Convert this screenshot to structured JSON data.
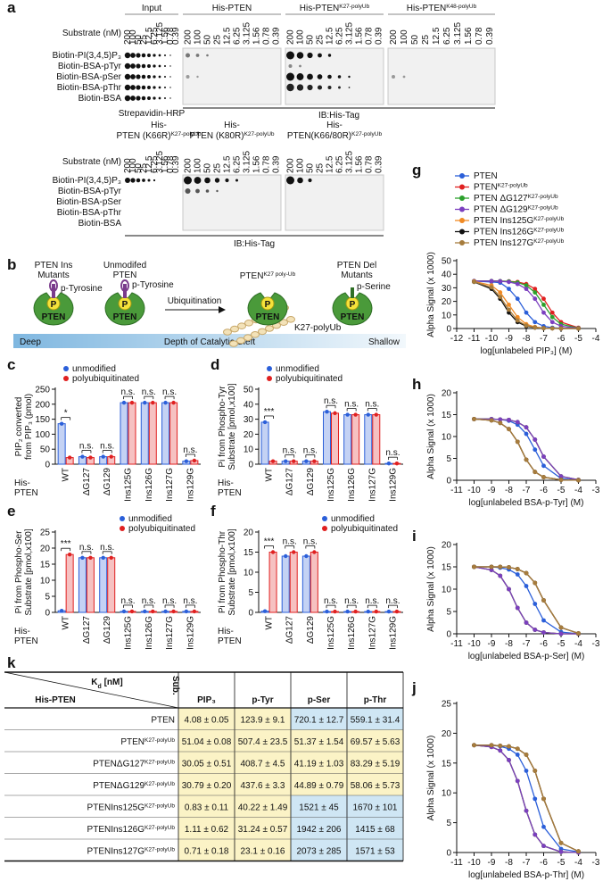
{
  "panel_a": {
    "label": "a",
    "substrate_label": "Substrate (nM)",
    "concentrations": [
      200,
      100,
      50,
      25,
      12.5,
      6.25,
      3.125,
      1.56,
      0.78,
      0.39
    ],
    "rows": [
      "Biotin-PI(3,4,5)P₃",
      "Biotin-BSA-pTyr",
      "Biotin-BSA-pSer",
      "Biotin-BSA-pThr",
      "Biotin-BSA"
    ],
    "top_blots": [
      {
        "title": "Input"
      },
      {
        "title": "His-PTEN"
      },
      {
        "title": "His-PTEN",
        "sup": "K27-polyUb"
      },
      {
        "title": "His-PTEN",
        "sup": "K48-polyUb"
      }
    ],
    "input_caption": "Strepavidin-HRP",
    "top_caption": "IB:His-Tag",
    "bottom_blots": [
      {
        "lines": [
          "His-",
          "PTEN (K66R)"
        ],
        "sup": "K27-polyUb"
      },
      {
        "lines": [
          "His-",
          "PTEN (K80R)"
        ],
        "sup": "K27-polyUb"
      },
      {
        "lines": [
          "His-",
          "PTEN(K66/80R)"
        ],
        "sup": "K27-polyUb"
      }
    ],
    "bottom_caption": "IB:His-Tag"
  },
  "panel_b": {
    "label": "b",
    "ins": [
      "PTEN Ins",
      "Mutants"
    ],
    "unmod": [
      "Unmodifed",
      "PTEN"
    ],
    "ptyr": "p-Tyrosine",
    "ubiq": "Ubiquitination",
    "k27": {
      "main": "PTEN",
      "sup": "K27 poly-Ub"
    },
    "del": [
      "PTEN Del",
      "Mutants"
    ],
    "pser": "p-Serine",
    "enzyme": "PTEN",
    "p": "P",
    "chain": "K27-polyUb",
    "scale": [
      "Deep",
      "Depth of Catalytic Cleft",
      "Shallow"
    ]
  },
  "chart_data": [
    {
      "type": "bar",
      "label": "c",
      "ylabel": [
        "PIP₂ converted",
        "from PIP₃ (pmol)"
      ],
      "xlabel": [
        "His-",
        "PTEN"
      ],
      "legend": "top-left",
      "categories": [
        "WT",
        "ΔG127",
        "ΔG129",
        "Ins125G",
        "Ins126G",
        "Ins127G",
        "Ins129G"
      ],
      "series": [
        {
          "name": "unmodified",
          "color": "#2b5fd9",
          "values": [
            135,
            25,
            25,
            205,
            205,
            205,
            10
          ]
        },
        {
          "name": "polyubiquitinated",
          "color": "#e02020",
          "values": [
            22,
            22,
            25,
            205,
            205,
            205,
            12
          ]
        }
      ],
      "annotations": [
        "*",
        "n.s.",
        "n.s.",
        "n.s.",
        "n.s.",
        "n.s.",
        "n.s."
      ],
      "ylim": [
        0,
        250
      ],
      "yticks": [
        0,
        50,
        100,
        150,
        200,
        250
      ]
    },
    {
      "type": "bar",
      "label": "d",
      "ylabel": [
        "Pi from Phospho-Tyr",
        "Substrate [pmol,x100]"
      ],
      "xlabel": [
        "His-",
        "PTEN"
      ],
      "legend": "top-left",
      "categories": [
        "WT",
        "ΔG127",
        "ΔG129",
        "Ins125G",
        "Ins126G",
        "Ins127G",
        "Ins129G"
      ],
      "series": [
        {
          "name": "unmodified",
          "color": "#2b5fd9",
          "values": [
            28,
            2,
            2,
            35,
            33,
            33,
            0.5
          ]
        },
        {
          "name": "polyubiquitinated",
          "color": "#e02020",
          "values": [
            2,
            2,
            2,
            34,
            33,
            33,
            0.5
          ]
        }
      ],
      "annotations": [
        "***",
        "n.s.",
        "n.s.",
        "n.s.",
        "n.s.",
        "n.s.",
        "n.s."
      ],
      "ylim": [
        0,
        50
      ],
      "yticks": [
        0,
        10,
        20,
        30,
        40,
        50
      ]
    },
    {
      "type": "bar",
      "label": "e",
      "ylabel": [
        "Pi from Phospho-Ser",
        "Substrate [pmol,x100]"
      ],
      "xlabel": [
        "His-",
        "PTEN"
      ],
      "legend": "top-right",
      "categories": [
        "WT",
        "ΔG127",
        "ΔG129",
        "Ins125G",
        "Ins126G",
        "Ins127G",
        "Ins129G"
      ],
      "series": [
        {
          "name": "unmodified",
          "color": "#2b5fd9",
          "values": [
            0.5,
            17,
            17,
            0.3,
            0.3,
            0.3,
            0.3
          ]
        },
        {
          "name": "polyubiquitinated",
          "color": "#e02020",
          "values": [
            18,
            17,
            17,
            0.3,
            0.3,
            0.3,
            0.3
          ]
        }
      ],
      "annotations": [
        "***",
        "n.s.",
        "n.s.",
        "n.s.",
        "n.s.",
        "n.s.",
        "n.s."
      ],
      "ylim": [
        0,
        25
      ],
      "yticks": [
        0,
        5,
        10,
        15,
        20,
        25
      ]
    },
    {
      "type": "bar",
      "label": "f",
      "ylabel": [
        "Pi from Phospho-Thr",
        "Substrate [pmol,x100]"
      ],
      "xlabel": [
        "His-",
        "PTEN"
      ],
      "legend": "top-right",
      "categories": [
        "WT",
        "ΔG127",
        "ΔG129",
        "Ins125G",
        "Ins126G",
        "Ins127G",
        "Ins129G"
      ],
      "series": [
        {
          "name": "unmodified",
          "color": "#2b5fd9",
          "values": [
            0.3,
            14,
            14,
            0.2,
            0.2,
            0.2,
            0.2
          ]
        },
        {
          "name": "polyubiquitinated",
          "color": "#e02020",
          "values": [
            15,
            15,
            15,
            0.2,
            0.2,
            0.2,
            0.2
          ]
        }
      ],
      "annotations": [
        "***",
        "n.s.",
        "n.s.",
        "n.s.",
        "n.s.",
        "n.s.",
        "n.s."
      ],
      "ylim": [
        0,
        20
      ],
      "yticks": [
        0,
        5,
        10,
        15,
        20
      ]
    },
    {
      "type": "line",
      "label": "g",
      "xlabel": "log[unlabeled PIP₃] (M)",
      "ylabel": "Alpha Signal (x 1000)",
      "x": [
        -11,
        -10,
        -9.5,
        -9,
        -8.5,
        -8,
        -7.5,
        -7,
        -6.5,
        -6,
        -5
      ],
      "xlim": [
        -12,
        -4
      ],
      "xticks": [
        -12,
        -11,
        -10,
        -9,
        -8,
        -7,
        -6,
        -5,
        -4
      ],
      "ylim": [
        0,
        50
      ],
      "yticks": [
        0,
        10,
        20,
        30,
        40,
        50
      ],
      "series": [
        {
          "name": "PTEN",
          "color": "#2b5fd9",
          "values": [
            34.9,
            34.3,
            33.8,
            29.2,
            21.9,
            11.7,
            4.7,
            1.7,
            0.6,
            0.2,
            0
          ]
        },
        {
          "name": "PTEN",
          "sup": "K27-polyUb",
          "color": "#e02020",
          "values": [
            35,
            35,
            34.9,
            34.8,
            34.3,
            32.8,
            29.2,
            21.9,
            11.7,
            4.7,
            0.6
          ]
        },
        {
          "name": "PTEN ΔG127",
          "sup": "K27-polyUb",
          "color": "#2ca02c",
          "values": [
            35,
            35,
            34.9,
            34.7,
            33.9,
            31.8,
            26.6,
            17.5,
            8.4,
            3.2,
            0.3
          ]
        },
        {
          "name": "PTEN ΔG129",
          "sup": "K27-polyUb",
          "color": "#7b3fbf",
          "values": [
            35,
            34.9,
            34.8,
            34.3,
            32.8,
            29.2,
            21.9,
            11.7,
            4.7,
            1.7,
            0.2
          ]
        },
        {
          "name": "PTEN Ins125G",
          "sup": "K27-polyUb",
          "color": "#f08a24",
          "values": [
            34.7,
            31.8,
            26.6,
            17.5,
            8.4,
            3.2,
            1.1,
            0.3,
            0.1,
            0,
            0
          ]
        },
        {
          "name": "PTEN Ins126G",
          "sup": "K27-polyUb",
          "color": "#111111",
          "values": [
            34.3,
            29.2,
            21.9,
            11.7,
            4.7,
            1.7,
            0.6,
            0.2,
            0.1,
            0,
            0
          ]
        },
        {
          "name": "PTEN Ins127G",
          "sup": "K27-polyUb",
          "color": "#a67c3d",
          "values": [
            34.4,
            30.4,
            23.3,
            13.9,
            5.9,
            2.1,
            0.7,
            0.2,
            0.1,
            0,
            0
          ]
        }
      ]
    },
    {
      "type": "line",
      "label": "h",
      "xlabel": "log[unlabeled BSA-p-Tyr] (M)",
      "ylabel": "Alpha Signal (x 1000)",
      "x": [
        -10,
        -9,
        -8.5,
        -8,
        -7.5,
        -7,
        -6.5,
        -6,
        -5,
        -4
      ],
      "xlim": [
        -11,
        -3
      ],
      "xticks": [
        -11,
        -10,
        -9,
        -8,
        -7,
        -6,
        -5,
        -4,
        -3
      ],
      "ylim": [
        0,
        20
      ],
      "yticks": [
        0,
        5,
        10,
        15,
        20
      ],
      "series": [
        {
          "color": "#2b5fd9",
          "values": [
            14,
            14,
            13.9,
            13.6,
            12.7,
            10.6,
            7,
            3.3,
            0.4,
            0
          ]
        },
        {
          "color": "#e02020",
          "values": [
            14,
            14,
            13.9,
            13.8,
            13.3,
            12.1,
            9.3,
            5.4,
            0.9,
            0.1
          ]
        },
        {
          "color": "#2ca02c",
          "values": [
            14,
            14,
            13.9,
            13.8,
            13.3,
            12.1,
            9.3,
            5.4,
            0.9,
            0.1
          ]
        },
        {
          "color": "#7b3fbf",
          "values": [
            14,
            14,
            13.9,
            13.8,
            13.3,
            12.1,
            9.3,
            5.4,
            0.9,
            0.1
          ]
        },
        {
          "color": "#f08a24",
          "values": [
            14,
            13.7,
            13.1,
            11.7,
            8.8,
            4.7,
            1.9,
            0.7,
            0.1,
            0
          ]
        },
        {
          "color": "#111111",
          "values": [
            14,
            13.7,
            13.1,
            11.7,
            8.8,
            4.7,
            1.9,
            0.7,
            0.1,
            0
          ]
        },
        {
          "color": "#a67c3d",
          "values": [
            14,
            13.7,
            13.1,
            11.7,
            8.8,
            4.7,
            1.9,
            0.7,
            0.1,
            0
          ]
        }
      ]
    },
    {
      "type": "line",
      "label": "i",
      "xlabel": "log[unlabeled BSA-p-Ser] (M)",
      "ylabel": "Alpha Signal (x 1000)",
      "x": [
        -10,
        -9,
        -8.5,
        -8,
        -7.5,
        -7,
        -6.5,
        -6,
        -5,
        -4
      ],
      "xlim": [
        -11,
        -3
      ],
      "xticks": [
        -11,
        -10,
        -9,
        -8,
        -7,
        -6,
        -5,
        -4,
        -3
      ],
      "ylim": [
        0,
        20
      ],
      "yticks": [
        0,
        5,
        10,
        15,
        20
      ],
      "series": [
        {
          "color": "#2b5fd9",
          "values": [
            15,
            15,
            14.8,
            14.4,
            13.3,
            10.7,
            6.7,
            3,
            0.4,
            0
          ]
        },
        {
          "color": "#e02020",
          "values": [
            15,
            14.3,
            13,
            10,
            5.8,
            2.5,
            0.9,
            0.3,
            0,
            0
          ]
        },
        {
          "color": "#2ca02c",
          "values": [
            15,
            14.3,
            13,
            10,
            5.8,
            2.5,
            0.9,
            0.3,
            0,
            0
          ]
        },
        {
          "color": "#7b3fbf",
          "values": [
            15,
            14.3,
            13,
            10,
            5.8,
            2.5,
            0.9,
            0.3,
            0,
            0
          ]
        },
        {
          "color": "#f08a24",
          "values": [
            15,
            15,
            15,
            14.9,
            14.5,
            13.6,
            11.4,
            7.5,
            1.4,
            0.1
          ]
        },
        {
          "color": "#111111",
          "values": [
            15,
            15,
            15,
            14.9,
            14.5,
            13.6,
            11.4,
            7.5,
            1.4,
            0.1
          ]
        },
        {
          "color": "#a67c3d",
          "values": [
            15,
            15,
            15,
            14.9,
            14.5,
            13.6,
            11.4,
            7.5,
            1.4,
            0.1
          ]
        }
      ]
    },
    {
      "type": "line",
      "label": "j",
      "xlabel": "log[unlabeled BSA-p-Thr] (M)",
      "ylabel": "Alpha Signal (x 1000)",
      "x": [
        -10,
        -9,
        -8.5,
        -8,
        -7.5,
        -7,
        -6.5,
        -6,
        -5,
        -4
      ],
      "xlim": [
        -11,
        -3
      ],
      "xticks": [
        -11,
        -10,
        -9,
        -8,
        -7,
        -6,
        -5,
        -4,
        -3
      ],
      "ylim": [
        0,
        25
      ],
      "yticks": [
        0,
        5,
        10,
        15,
        20,
        25
      ],
      "series": [
        {
          "color": "#2b5fd9",
          "values": [
            18,
            18,
            17.8,
            17.4,
            16.4,
            13.7,
            9,
            4.3,
            0.6,
            0.1
          ]
        },
        {
          "color": "#e02020",
          "values": [
            18,
            17.7,
            17.1,
            15.5,
            12,
            7,
            3,
            1.1,
            0.1,
            0
          ]
        },
        {
          "color": "#2ca02c",
          "values": [
            18,
            17.7,
            17.1,
            15.5,
            12,
            7,
            3,
            1.1,
            0.1,
            0
          ]
        },
        {
          "color": "#7b3fbf",
          "values": [
            18,
            17.7,
            17.1,
            15.5,
            12,
            7,
            3,
            1.1,
            0.1,
            0
          ]
        },
        {
          "color": "#f08a24",
          "values": [
            18,
            18,
            17.9,
            17.8,
            17.4,
            16.4,
            13.7,
            9,
            1.6,
            0.2
          ]
        },
        {
          "color": "#111111",
          "values": [
            18,
            18,
            17.9,
            17.8,
            17.4,
            16.4,
            13.7,
            9,
            1.6,
            0.2
          ]
        },
        {
          "color": "#a67c3d",
          "values": [
            18,
            18,
            17.9,
            17.8,
            17.4,
            16.4,
            13.7,
            9,
            1.6,
            0.2
          ]
        }
      ]
    }
  ],
  "table": {
    "label": "k",
    "kd": {
      "main": "K",
      "sub": "d",
      "unit": " [nM]"
    },
    "sub": "Sub.",
    "row_header": "His-PTEN",
    "columns": [
      "PIP₃",
      "p-Tyr",
      "p-Ser",
      "p-Thr"
    ],
    "rows": [
      {
        "name": "PTEN",
        "cells": [
          "4.08 ± 0.05",
          "123.9 ± 9.1",
          "720.1 ± 12.7",
          "559.1 ± 31.4"
        ]
      },
      {
        "name": "PTEN",
        "sup": "K27-polyUb",
        "cells": [
          "51.04 ± 0.08",
          "507.4 ± 23.5",
          "51.37 ± 1.54",
          "69.57 ± 5.63"
        ]
      },
      {
        "name": "PTENΔG127",
        "sup": "K27-polyUb",
        "cells": [
          "30.05 ± 0.51",
          "408.7 ± 4.5",
          "41.19 ± 1.03",
          "83.29 ± 5.19"
        ]
      },
      {
        "name": "PTENΔG129",
        "sup": "K27-polyUb",
        "cells": [
          "30.79 ± 0.20",
          "437.6 ± 3.3",
          "44.89 ± 0.79",
          "58.06 ± 5.73"
        ]
      },
      {
        "name": "PTENIns125G",
        "sup": "K27-polyUb",
        "cells": [
          "0.83 ± 0.11",
          "40.22 ± 1.49",
          "1521 ± 45",
          "1670 ± 101"
        ]
      },
      {
        "name": "PTENIns126G",
        "sup": "K27-polyUb",
        "cells": [
          "1.11 ± 0.62",
          "31.24 ± 0.57",
          "1942 ± 206",
          "1415 ± 68"
        ]
      },
      {
        "name": "PTENIns127G",
        "sup": "K27-polyUb",
        "cells": [
          "0.71 ± 0.18",
          "23.1 ± 0.16",
          "2073 ± 285",
          "1571 ± 53"
        ]
      }
    ]
  }
}
